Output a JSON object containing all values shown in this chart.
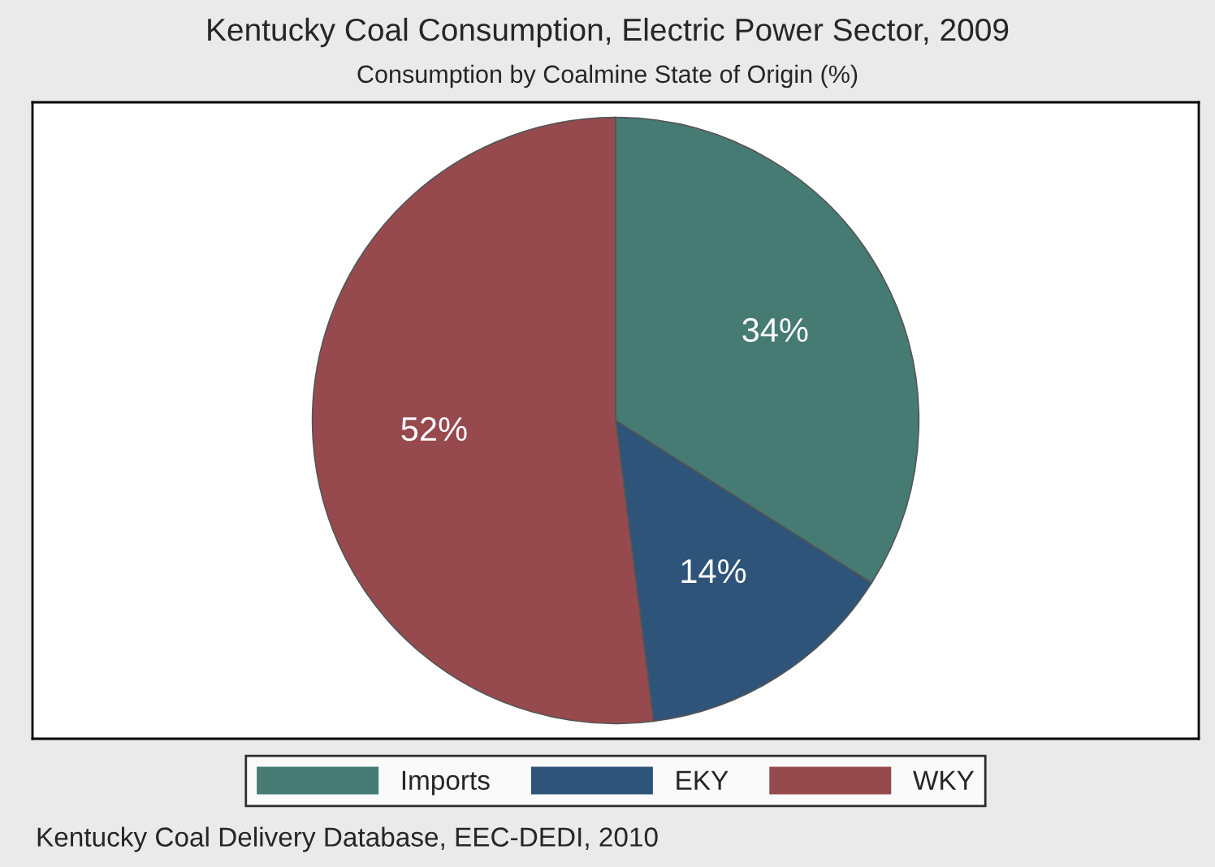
{
  "chart_data": {
    "type": "pie",
    "title": "Kentucky Coal Consumption, Electric Power Sector, 2009",
    "subtitle": "Consumption by Coalmine State of Origin (%)",
    "categories": [
      "Imports",
      "EKY",
      "WKY"
    ],
    "values": [
      34,
      14,
      52
    ],
    "colors": [
      "#457b73",
      "#2f5479",
      "#974a4e"
    ],
    "value_labels": [
      "34%",
      "14%",
      "52%"
    ],
    "legend": "bottom",
    "annotations": [
      "Kentucky Coal Delivery Database, EEC-DEDI, 2010"
    ]
  }
}
